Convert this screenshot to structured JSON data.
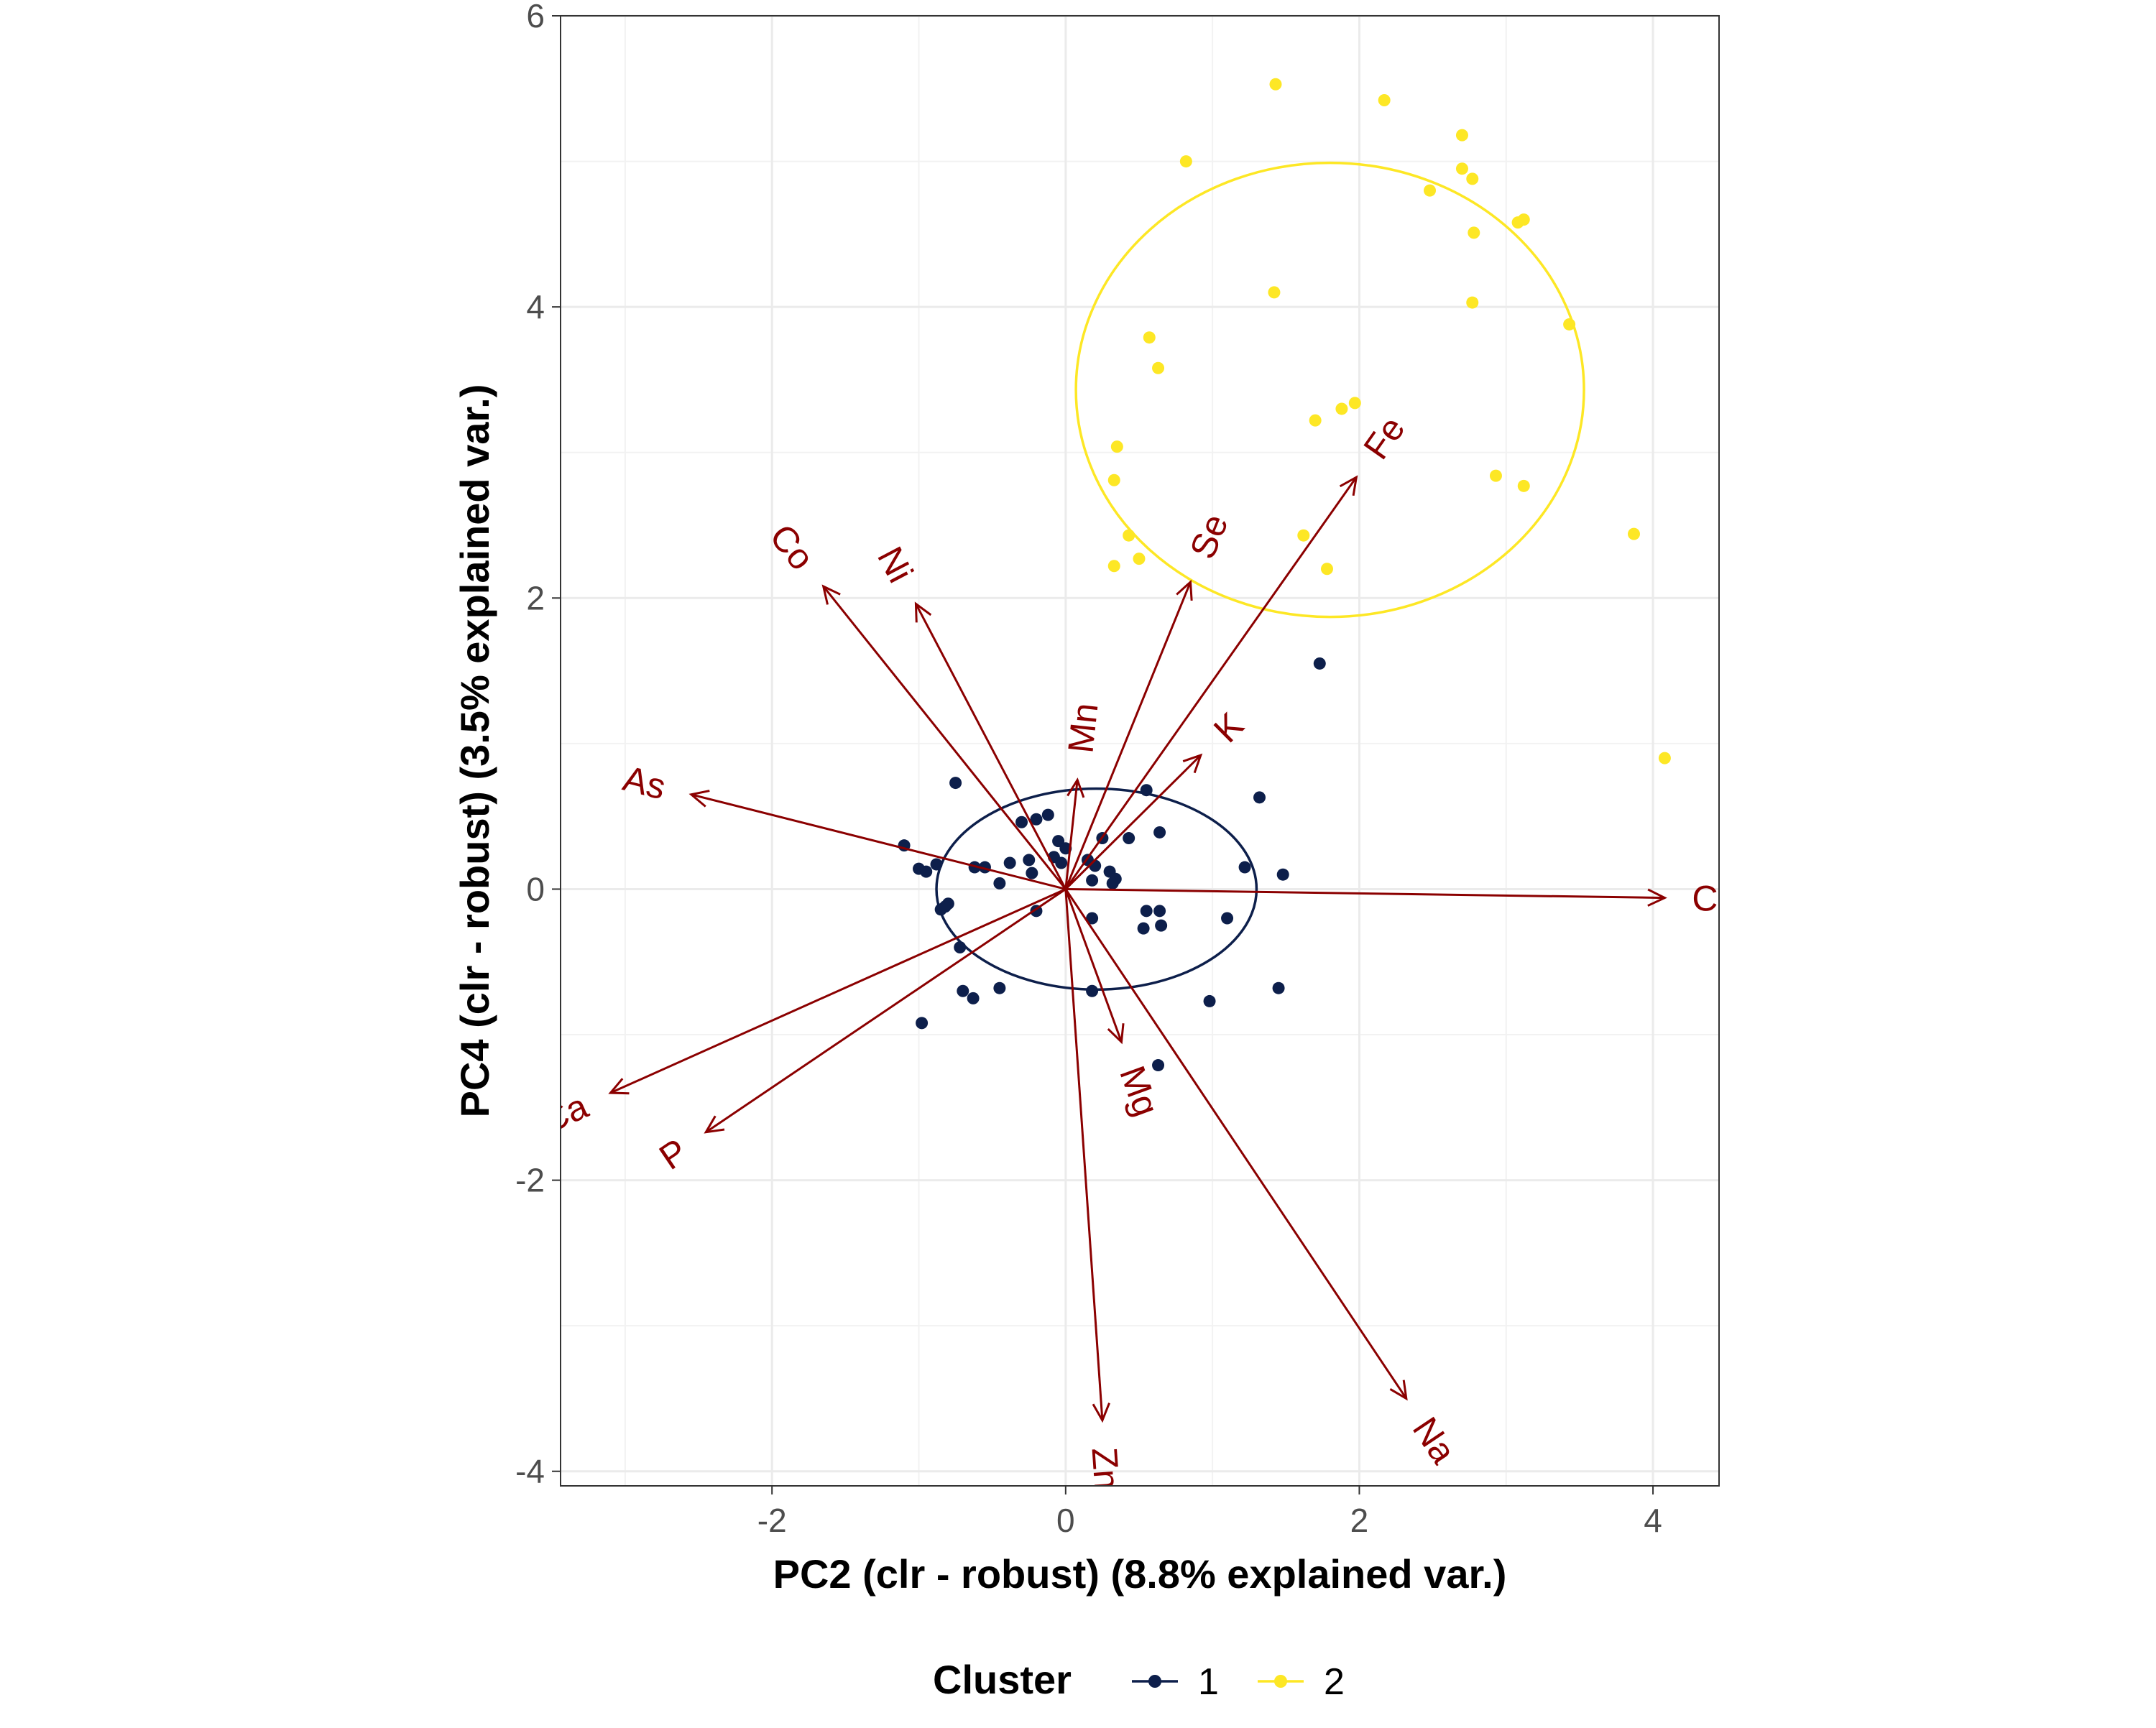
{
  "chart_data": {
    "type": "scatter",
    "subtype": "pca-biplot",
    "xlabel": "PC2 (clr - robust) (8.8% explained var.)",
    "ylabel": "PC4 (clr - robust) (3.5% explained var.)",
    "xlim": [
      -3.44,
      4.45
    ],
    "ylim": [
      -4.1,
      6.0
    ],
    "x_ticks": [
      -2,
      0,
      2,
      4
    ],
    "x_tick_labels": [
      "-2",
      "0",
      "2",
      "4"
    ],
    "y_ticks": [
      -4,
      -2,
      0,
      2,
      4,
      6
    ],
    "y_tick_labels": [
      "-4",
      "-2",
      "0",
      "2",
      "4",
      "6"
    ],
    "grid": true,
    "legend": {
      "title": "Cluster",
      "position": "bottom",
      "entries": [
        {
          "label": "1",
          "color": "#0d1f4b"
        },
        {
          "label": "2",
          "color": "#fde725"
        }
      ]
    },
    "series": [
      {
        "name": "1",
        "color": "#0d1f4b",
        "points": [
          [
            -0.75,
            0.73
          ],
          [
            -1.1,
            0.3
          ],
          [
            -1.0,
            0.14
          ],
          [
            -0.95,
            0.12
          ],
          [
            -0.88,
            0.17
          ],
          [
            -0.85,
            -0.14
          ],
          [
            -0.82,
            -0.12
          ],
          [
            -0.8,
            -0.1
          ],
          [
            -0.62,
            0.15
          ],
          [
            -0.55,
            0.15
          ],
          [
            -0.45,
            0.04
          ],
          [
            -0.38,
            0.18
          ],
          [
            -0.3,
            0.46
          ],
          [
            -0.25,
            0.2
          ],
          [
            -0.23,
            0.11
          ],
          [
            -0.2,
            0.48
          ],
          [
            -0.12,
            0.51
          ],
          [
            -0.05,
            0.33
          ],
          [
            0.0,
            0.28
          ],
          [
            -0.08,
            0.22
          ],
          [
            -0.03,
            0.18
          ],
          [
            -0.2,
            -0.15
          ],
          [
            -0.72,
            -0.4
          ],
          [
            -0.7,
            -0.7
          ],
          [
            -0.63,
            -0.75
          ],
          [
            -0.45,
            -0.68
          ],
          [
            -0.98,
            -0.92
          ],
          [
            0.15,
            0.2
          ],
          [
            0.2,
            0.16
          ],
          [
            0.18,
            0.06
          ],
          [
            0.25,
            0.35
          ],
          [
            0.3,
            0.12
          ],
          [
            0.34,
            0.07
          ],
          [
            0.32,
            0.04
          ],
          [
            0.43,
            0.35
          ],
          [
            0.55,
            0.68
          ],
          [
            0.64,
            0.39
          ],
          [
            0.18,
            -0.2
          ],
          [
            0.55,
            -0.15
          ],
          [
            0.64,
            -0.15
          ],
          [
            0.65,
            -0.25
          ],
          [
            0.53,
            -0.27
          ],
          [
            0.18,
            -0.7
          ],
          [
            0.98,
            -0.77
          ],
          [
            1.1,
            -0.2
          ],
          [
            1.22,
            0.15
          ],
          [
            1.32,
            0.63
          ],
          [
            1.48,
            0.1
          ],
          [
            1.45,
            -0.68
          ],
          [
            0.63,
            -1.21
          ],
          [
            1.73,
            1.55
          ]
        ]
      },
      {
        "name": "2",
        "color": "#fde725",
        "points": [
          [
            1.43,
            5.53
          ],
          [
            2.17,
            5.42
          ],
          [
            0.82,
            5.0
          ],
          [
            2.7,
            5.18
          ],
          [
            2.7,
            4.95
          ],
          [
            2.77,
            4.88
          ],
          [
            2.48,
            4.8
          ],
          [
            3.08,
            4.58
          ],
          [
            3.12,
            4.6
          ],
          [
            2.78,
            4.51
          ],
          [
            1.42,
            4.1
          ],
          [
            2.77,
            4.03
          ],
          [
            3.43,
            3.88
          ],
          [
            0.57,
            3.79
          ],
          [
            0.63,
            3.58
          ],
          [
            1.97,
            3.34
          ],
          [
            1.88,
            3.3
          ],
          [
            1.7,
            3.22
          ],
          [
            0.35,
            3.04
          ],
          [
            0.33,
            2.81
          ],
          [
            2.93,
            2.84
          ],
          [
            3.12,
            2.77
          ],
          [
            0.43,
            2.43
          ],
          [
            1.62,
            2.43
          ],
          [
            3.87,
            2.44
          ],
          [
            0.5,
            2.27
          ],
          [
            0.33,
            2.22
          ],
          [
            1.78,
            2.2
          ],
          [
            4.08,
            0.9
          ]
        ]
      }
    ],
    "ellipses": [
      {
        "cluster": "1",
        "color": "#0d1f4b",
        "cx": 0.21,
        "cy": 0.0,
        "rx": 1.09,
        "ry": 0.69
      },
      {
        "cluster": "2",
        "color": "#fde725",
        "cx": 1.8,
        "cy": 3.43,
        "rx": 1.73,
        "ry": 1.56
      }
    ],
    "loadings": {
      "color": "#8b0000",
      "arrows": [
        {
          "label": "Cu",
          "x": 4.08,
          "y": -0.06
        },
        {
          "label": "Fe",
          "x": 1.98,
          "y": 2.83
        },
        {
          "label": "Se",
          "x": 0.85,
          "y": 2.11
        },
        {
          "label": "Co",
          "x": -1.65,
          "y": 2.08
        },
        {
          "label": "Ni",
          "x": -1.02,
          "y": 1.96
        },
        {
          "label": "Mn",
          "x": 0.08,
          "y": 0.75
        },
        {
          "label": "K",
          "x": 0.92,
          "y": 0.92
        },
        {
          "label": "As",
          "x": -2.55,
          "y": 0.65
        },
        {
          "label": "Ca",
          "x": -3.1,
          "y": -1.4
        },
        {
          "label": "P",
          "x": -2.45,
          "y": -1.67
        },
        {
          "label": "Mg",
          "x": 0.38,
          "y": -1.05
        },
        {
          "label": "Zn",
          "x": 0.25,
          "y": -3.65
        },
        {
          "label": "Na",
          "x": 2.32,
          "y": -3.5
        }
      ]
    }
  }
}
